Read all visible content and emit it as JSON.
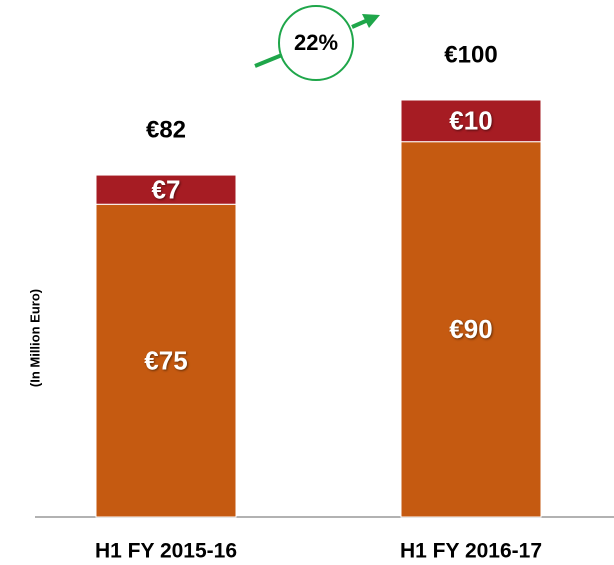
{
  "chart_data": {
    "type": "stacked_bar",
    "categories": [
      "H1 FY 2015-16",
      "H1 FY 2016-17"
    ],
    "series": [
      {
        "color": "#c55a11",
        "values": [
          75,
          90
        ],
        "value_labels": [
          "€75",
          "€90"
        ]
      },
      {
        "color": "#a61c23",
        "values": [
          7,
          10
        ],
        "value_labels": [
          "€7",
          "€10"
        ]
      }
    ],
    "totals": [
      82,
      100
    ],
    "total_labels": [
      "€82",
      "€100"
    ],
    "ylabel": "(In Million Euro)",
    "annotation": "22%",
    "ylim": [
      0,
      100
    ]
  }
}
